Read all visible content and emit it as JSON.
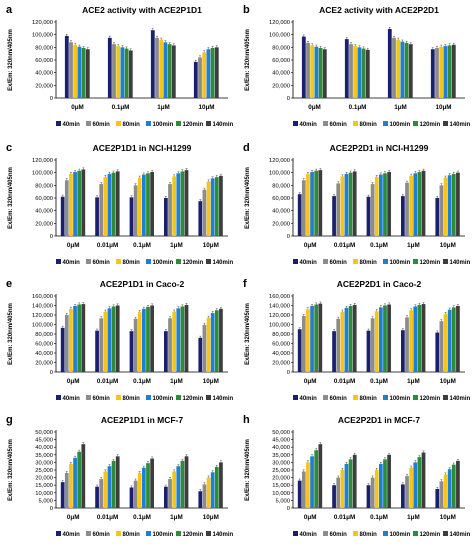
{
  "series_colors": [
    "#1a1f6e",
    "#8c8c8c",
    "#f5c518",
    "#1f7fd4",
    "#2e8b3a",
    "#3d3d3d"
  ],
  "chart_data": [
    {
      "panel": "a",
      "type": "bar",
      "title": "ACE2 activity with ACE2P1D1",
      "ylabel": "Ex/Em: 320nm/405nm",
      "ylim": [
        0,
        120000
      ],
      "yticks": [
        "0",
        "20,000",
        "40,000",
        "60,000",
        "80,000",
        "100,000",
        "120,000"
      ],
      "categories": [
        "0μM",
        "0.1μM",
        "1μM",
        "10μM"
      ],
      "series": [
        {
          "name": "40min",
          "values": [
            98000,
            95000,
            107000,
            57000
          ]
        },
        {
          "name": "60min",
          "values": [
            88000,
            85000,
            95000,
            64000
          ]
        },
        {
          "name": "80min",
          "values": [
            84000,
            82000,
            92000,
            72000
          ]
        },
        {
          "name": "100min",
          "values": [
            81000,
            80000,
            88000,
            77000
          ]
        },
        {
          "name": "120min",
          "values": [
            79000,
            78000,
            85000,
            79000
          ]
        },
        {
          "name": "140min",
          "values": [
            77000,
            75000,
            83000,
            80000
          ]
        }
      ]
    },
    {
      "panel": "b",
      "type": "bar",
      "title": "ACE2 activity with ACE2P2D1",
      "ylabel": "Ex/Em: 320nm/405nm",
      "ylim": [
        0,
        120000
      ],
      "yticks": [
        "0",
        "20,000",
        "40,000",
        "60,000",
        "80,000",
        "100,000",
        "120,000"
      ],
      "categories": [
        "0μM",
        "0.1μM",
        "1μM",
        "10μM"
      ],
      "series": [
        {
          "name": "40min",
          "values": [
            97000,
            93000,
            109000,
            77000
          ]
        },
        {
          "name": "60min",
          "values": [
            87000,
            85000,
            95000,
            79000
          ]
        },
        {
          "name": "80min",
          "values": [
            83000,
            82000,
            92000,
            81000
          ]
        },
        {
          "name": "100min",
          "values": [
            81000,
            80000,
            89000,
            82000
          ]
        },
        {
          "name": "120min",
          "values": [
            79000,
            78000,
            87000,
            83000
          ]
        },
        {
          "name": "140min",
          "values": [
            77000,
            76000,
            85000,
            84000
          ]
        }
      ]
    },
    {
      "panel": "c",
      "type": "bar",
      "title": "ACE2P1D1  in NCI-H1299",
      "ylabel": "Ex/Em: 320nm/405nm",
      "ylim": [
        0,
        120000
      ],
      "yticks": [
        "0",
        "20,000",
        "40,000",
        "60,000",
        "80,000",
        "100,000",
        "120,000"
      ],
      "categories": [
        "0μM",
        "0.01μM",
        "0.1μM",
        "1μM",
        "10μM"
      ],
      "series": [
        {
          "name": "40min",
          "values": [
            62000,
            61000,
            61000,
            60000,
            55000
          ]
        },
        {
          "name": "60min",
          "values": [
            88000,
            82000,
            80000,
            82000,
            73000
          ]
        },
        {
          "name": "80min",
          "values": [
            98000,
            93000,
            92000,
            94000,
            86000
          ]
        },
        {
          "name": "100min",
          "values": [
            101000,
            98000,
            97000,
            99000,
            91000
          ]
        },
        {
          "name": "120min",
          "values": [
            103000,
            100000,
            99000,
            102000,
            93000
          ]
        },
        {
          "name": "140min",
          "values": [
            105000,
            102000,
            101000,
            104000,
            95000
          ]
        }
      ]
    },
    {
      "panel": "d",
      "type": "bar",
      "title": "ACE2P2D1  in NCI-H1299",
      "ylabel": "Ex/Em: 320nm/405nm",
      "ylim": [
        0,
        120000
      ],
      "yticks": [
        "0",
        "20,000",
        "40,000",
        "60,000",
        "80,000",
        "100,000",
        "120,000"
      ],
      "categories": [
        "0μM",
        "0.01μM",
        "0.1μM",
        "1μM",
        "10μM"
      ],
      "series": [
        {
          "name": "40min",
          "values": [
            66000,
            63000,
            62000,
            63000,
            60000
          ]
        },
        {
          "name": "60min",
          "values": [
            88000,
            83000,
            82000,
            84000,
            80000
          ]
        },
        {
          "name": "80min",
          "values": [
            98000,
            94000,
            93000,
            95000,
            92000
          ]
        },
        {
          "name": "100min",
          "values": [
            101000,
            98000,
            97000,
            99000,
            96000
          ]
        },
        {
          "name": "120min",
          "values": [
            103000,
            100000,
            99000,
            101000,
            98000
          ]
        },
        {
          "name": "140min",
          "values": [
            104000,
            102000,
            101000,
            103000,
            100000
          ]
        }
      ]
    },
    {
      "panel": "e",
      "type": "bar",
      "title": "ACE2P1D1  in Caco-2",
      "ylabel": "Ex/Em: 320nm/405nm",
      "ylim": [
        0,
        160000
      ],
      "yticks": [
        "0",
        "20,000",
        "40,000",
        "60,000",
        "80,000",
        "100,000",
        "120,000",
        "140,000",
        "160,000"
      ],
      "categories": [
        "0μM",
        "0.01μM",
        "0.1μM",
        "1μM",
        "10μM"
      ],
      "series": [
        {
          "name": "40min",
          "values": [
            93000,
            87000,
            86000,
            86000,
            72000
          ]
        },
        {
          "name": "60min",
          "values": [
            120000,
            113000,
            112000,
            113000,
            99000
          ]
        },
        {
          "name": "80min",
          "values": [
            133000,
            127000,
            126000,
            127000,
            114000
          ]
        },
        {
          "name": "100min",
          "values": [
            139000,
            134000,
            133000,
            134000,
            124000
          ]
        },
        {
          "name": "120min",
          "values": [
            142000,
            138000,
            137000,
            138000,
            130000
          ]
        },
        {
          "name": "140min",
          "values": [
            143000,
            140000,
            140000,
            141000,
            133000
          ]
        }
      ]
    },
    {
      "panel": "f",
      "type": "bar",
      "title": "ACE2P2D1  in Caco-2",
      "ylabel": "Ex/Em: 320nm/405nm",
      "ylim": [
        0,
        160000
      ],
      "yticks": [
        "0",
        "20,000",
        "40,000",
        "60,000",
        "80,000",
        "100,000",
        "120,000",
        "140,000",
        "160,000"
      ],
      "categories": [
        "0μM",
        "0.01μM",
        "0.1μM",
        "1μM",
        "10μM"
      ],
      "series": [
        {
          "name": "40min",
          "values": [
            90000,
            86000,
            87000,
            88000,
            83000
          ]
        },
        {
          "name": "60min",
          "values": [
            118000,
            112000,
            113000,
            115000,
            107000
          ]
        },
        {
          "name": "80min",
          "values": [
            132000,
            127000,
            128000,
            130000,
            122000
          ]
        },
        {
          "name": "100min",
          "values": [
            139000,
            135000,
            136000,
            138000,
            131000
          ]
        },
        {
          "name": "120min",
          "values": [
            142000,
            139000,
            140000,
            141000,
            136000
          ]
        },
        {
          "name": "140min",
          "values": [
            144000,
            141000,
            142000,
            143000,
            139000
          ]
        }
      ]
    },
    {
      "panel": "g",
      "type": "bar",
      "title": "ACE2P1D1  in MCF-7",
      "ylabel": "Ex/Em: 320nm/405nm",
      "ylim": [
        0,
        50000
      ],
      "yticks": [
        "0",
        "5,000",
        "10,000",
        "15,000",
        "20,000",
        "25,000",
        "30,000",
        "35,000",
        "40,000",
        "45,000",
        "50,000"
      ],
      "categories": [
        "0μM",
        "0.01μM",
        "0.1μM",
        "1μM",
        "10μM"
      ],
      "series": [
        {
          "name": "40min",
          "values": [
            17000,
            14000,
            13500,
            14000,
            11000
          ]
        },
        {
          "name": "60min",
          "values": [
            23000,
            19000,
            18000,
            19000,
            15500
          ]
        },
        {
          "name": "80min",
          "values": [
            29000,
            24000,
            23000,
            24000,
            20000
          ]
        },
        {
          "name": "100min",
          "values": [
            33000,
            27500,
            26500,
            27500,
            23500
          ]
        },
        {
          "name": "120min",
          "values": [
            37000,
            31000,
            29500,
            31000,
            27000
          ]
        },
        {
          "name": "140min",
          "values": [
            42000,
            34000,
            32500,
            34000,
            30000
          ]
        }
      ]
    },
    {
      "panel": "h",
      "type": "bar",
      "title": "ACE2P2D1  in MCF-7",
      "ylabel": "Ex/Em: 320nm/405nm",
      "ylim": [
        0,
        50000
      ],
      "yticks": [
        "0",
        "5,000",
        "10,000",
        "15,000",
        "20,000",
        "25,000",
        "30,000",
        "35,000",
        "40,000",
        "45,000",
        "50,000"
      ],
      "categories": [
        "0μM",
        "0.01μM",
        "0.1μM",
        "1μM",
        "10μM"
      ],
      "series": [
        {
          "name": "40min",
          "values": [
            18000,
            15000,
            15000,
            15500,
            12500
          ]
        },
        {
          "name": "60min",
          "values": [
            24000,
            20000,
            20000,
            21000,
            17500
          ]
        },
        {
          "name": "80min",
          "values": [
            30000,
            25000,
            25000,
            26500,
            22000
          ]
        },
        {
          "name": "100min",
          "values": [
            34000,
            29000,
            29000,
            30000,
            25500
          ]
        },
        {
          "name": "120min",
          "values": [
            38000,
            32000,
            32000,
            33500,
            28500
          ]
        },
        {
          "name": "140min",
          "values": [
            42000,
            35000,
            35000,
            36500,
            31000
          ]
        }
      ]
    }
  ]
}
